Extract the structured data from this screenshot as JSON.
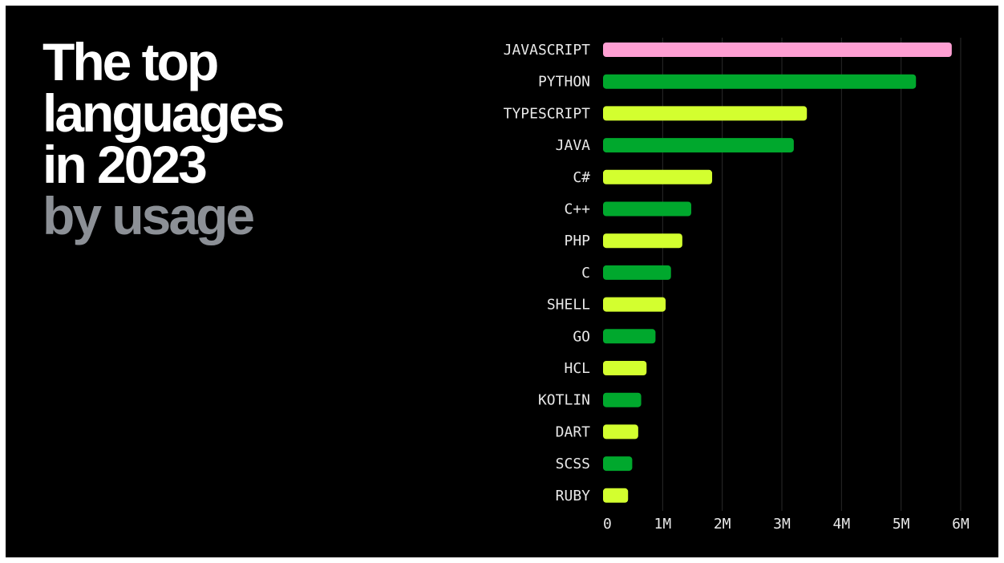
{
  "headline": {
    "line1": "The top",
    "line2": "languages",
    "line3": "in 2023",
    "line4": "by usage"
  },
  "colors": {
    "background": "#000000",
    "title": "#ffffff",
    "subtitle": "#8c9096",
    "highlight": "#ff9fd3",
    "green": "#00a82d",
    "lime": "#d3ff2f",
    "gridline": "#2a2a2a"
  },
  "chart_data": {
    "type": "bar",
    "orientation": "horizontal",
    "title": "The top languages in 2023 by usage",
    "categories": [
      "JAVASCRIPT",
      "PYTHON",
      "TYPESCRIPT",
      "JAVA",
      "C#",
      "C++",
      "PHP",
      "C",
      "SHELL",
      "GO",
      "HCL",
      "KOTLIN",
      "DART",
      "SCSS",
      "RUBY"
    ],
    "values": [
      5.85,
      5.25,
      3.42,
      3.2,
      1.83,
      1.48,
      1.33,
      1.14,
      1.05,
      0.88,
      0.73,
      0.64,
      0.59,
      0.49,
      0.42
    ],
    "bar_colors": [
      "#ff9fd3",
      "#00a82d",
      "#d3ff2f",
      "#00a82d",
      "#d3ff2f",
      "#00a82d",
      "#d3ff2f",
      "#00a82d",
      "#d3ff2f",
      "#00a82d",
      "#d3ff2f",
      "#00a82d",
      "#d3ff2f",
      "#00a82d",
      "#d3ff2f"
    ],
    "unit": "millions",
    "xlim": [
      0,
      6
    ],
    "ticks": [
      0,
      1,
      2,
      3,
      4,
      5,
      6
    ],
    "tick_labels": [
      "0",
      "1M",
      "2M",
      "3M",
      "4M",
      "5M",
      "6M"
    ],
    "grid": "vertical",
    "legend": "none"
  }
}
